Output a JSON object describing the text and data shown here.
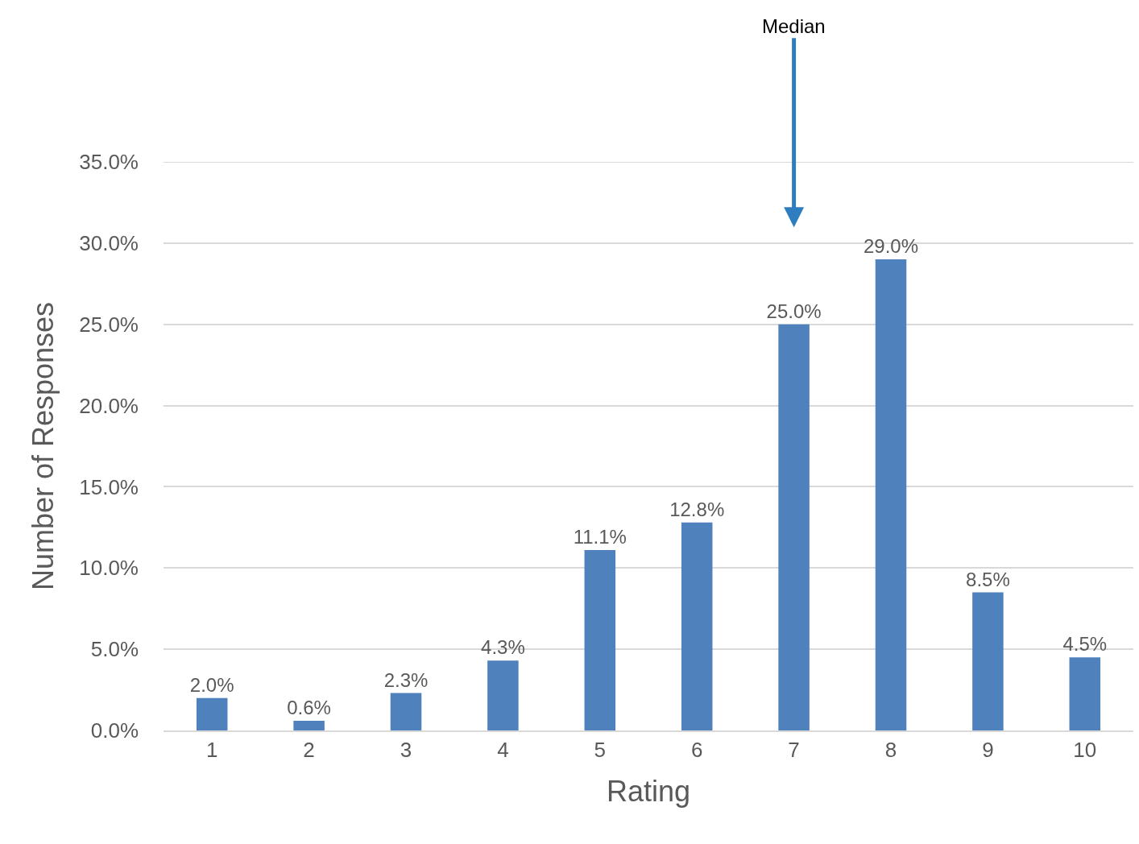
{
  "chart_data": {
    "type": "bar",
    "xlabel": "Rating",
    "ylabel": "Number of Responses",
    "categories": [
      "1",
      "2",
      "3",
      "4",
      "5",
      "6",
      "7",
      "8",
      "9",
      "10"
    ],
    "values": [
      2.0,
      0.6,
      2.3,
      4.3,
      11.1,
      12.8,
      25.0,
      29.0,
      8.5,
      4.5
    ],
    "value_labels": [
      "2.0%",
      "0.6%",
      "2.3%",
      "4.3%",
      "11.1%",
      "12.8%",
      "25.0%",
      "29.0%",
      "8.5%",
      "4.5%"
    ],
    "color": "#4f81bd",
    "ylim": [
      0,
      35
    ],
    "yticks": [
      {
        "value": 0,
        "label": "0.0%"
      },
      {
        "value": 5,
        "label": "5.0%"
      },
      {
        "value": 10,
        "label": "10.0%"
      },
      {
        "value": 15,
        "label": "15.0%"
      },
      {
        "value": 20,
        "label": "20.0%"
      },
      {
        "value": 25,
        "label": "25.0%"
      },
      {
        "value": 30,
        "label": "30.0%"
      },
      {
        "value": 35,
        "label": "35.0%"
      }
    ],
    "grid": "y",
    "legend": false,
    "annotations": [
      "Median"
    ]
  }
}
